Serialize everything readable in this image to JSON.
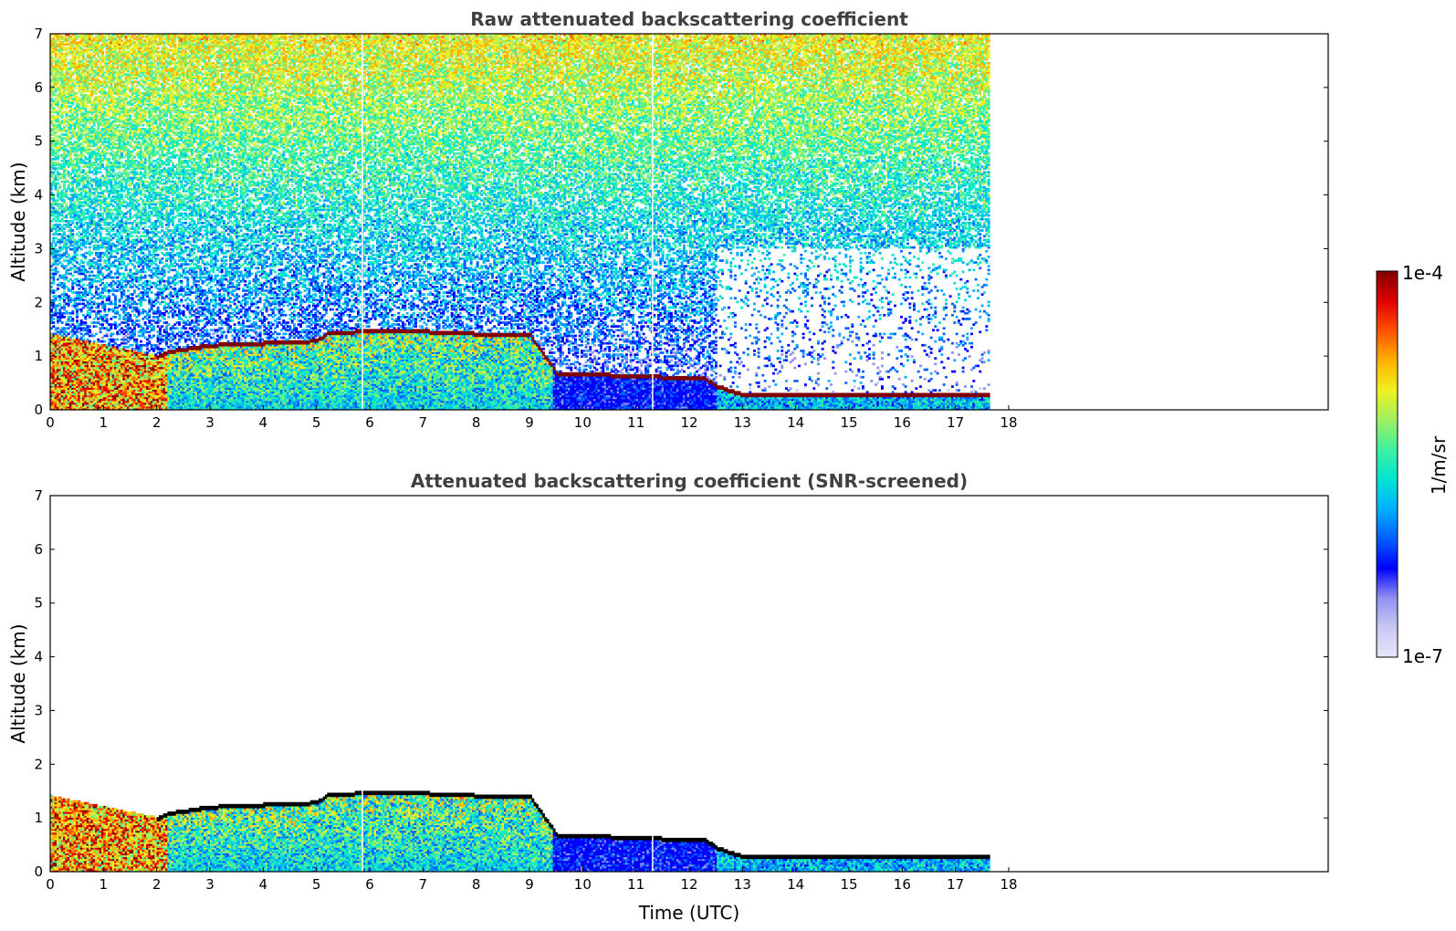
{
  "chart_data": [
    {
      "type": "heatmap",
      "title": "Raw attenuated backscattering coefficient",
      "xlabel": "",
      "ylabel": "Altitude (km)",
      "xlim": [
        0,
        24
      ],
      "ylim": [
        0,
        7
      ],
      "x_ticks": [
        "0",
        "1",
        "2",
        "3",
        "4",
        "5",
        "6",
        "7",
        "8",
        "9",
        "10",
        "11",
        "12",
        "13",
        "14",
        "15",
        "16",
        "17",
        "18"
      ],
      "y_ticks": [
        "0",
        "1",
        "2",
        "3",
        "4",
        "5",
        "6",
        "7"
      ],
      "data_end_hour": 17.6,
      "gaps_hours": [
        5.85,
        11.3
      ],
      "layer_top_km": [
        [
          0,
          1.4
        ],
        [
          2,
          1.0
        ],
        [
          2.2,
          1.1
        ],
        [
          3,
          1.22
        ],
        [
          5,
          1.3
        ],
        [
          5.2,
          1.45
        ],
        [
          6.5,
          1.5
        ],
        [
          7.5,
          1.45
        ],
        [
          9,
          1.4
        ],
        [
          9.5,
          0.7
        ],
        [
          12.3,
          0.6
        ],
        [
          12.5,
          0.45
        ],
        [
          13,
          0.3
        ],
        [
          17.6,
          0.28
        ]
      ],
      "screened": false
    },
    {
      "type": "heatmap",
      "title": "Attenuated backscattering coefficient (SNR-screened)",
      "xlabel": "Time (UTC)",
      "ylabel": "Altitude (km)",
      "xlim": [
        0,
        24
      ],
      "ylim": [
        0,
        7
      ],
      "x_ticks": [
        "0",
        "1",
        "2",
        "3",
        "4",
        "5",
        "6",
        "7",
        "8",
        "9",
        "10",
        "11",
        "12",
        "13",
        "14",
        "15",
        "16",
        "17",
        "18"
      ],
      "y_ticks": [
        "0",
        "1",
        "2",
        "3",
        "4",
        "5",
        "6",
        "7"
      ],
      "data_end_hour": 17.6,
      "gaps_hours": [
        5.85,
        11.3
      ],
      "screened": true
    }
  ],
  "colorbar": {
    "label": "1/m/sr",
    "max_label": "1e-4",
    "min_label": "1e-7",
    "colormap": [
      "#e6e6f8",
      "#c8c8f5",
      "#9090f0",
      "#0000ff",
      "#0060ff",
      "#00b0ff",
      "#00e5d0",
      "#40f0a0",
      "#a0f060",
      "#f0f020",
      "#ffb000",
      "#ff5000",
      "#e00000",
      "#800000"
    ]
  }
}
